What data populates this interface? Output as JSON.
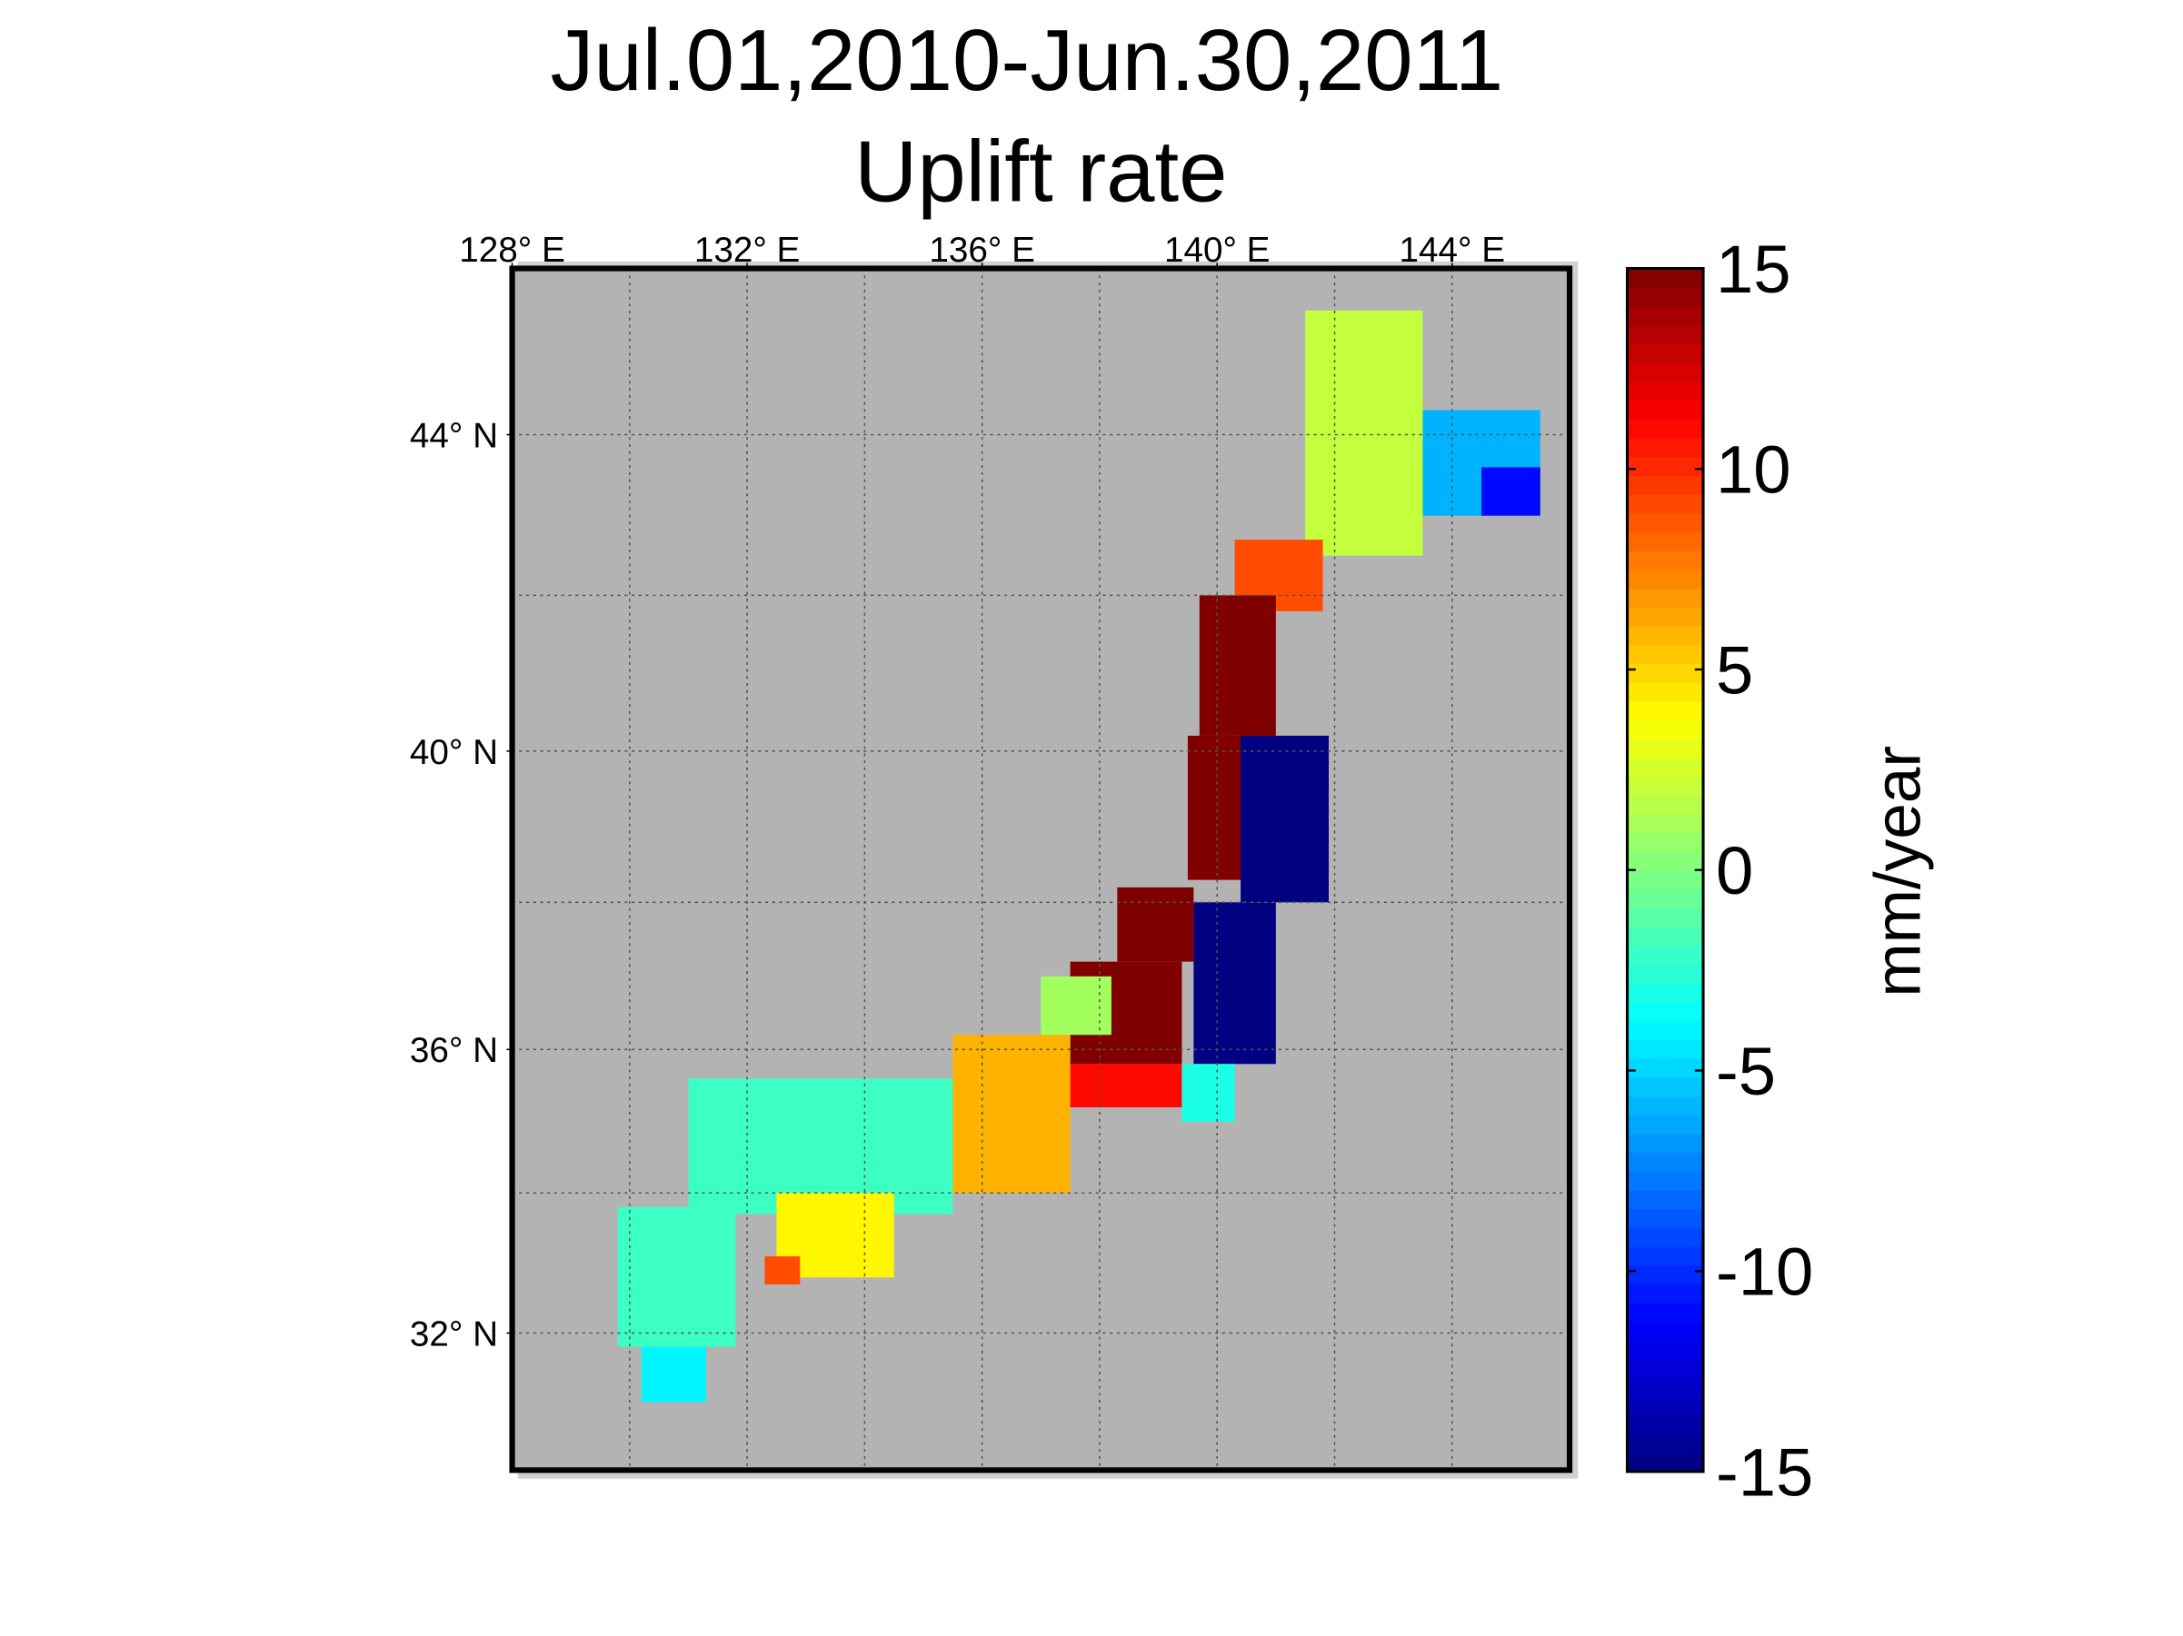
{
  "chart_data": {
    "type": "map",
    "title": "Jul.01,2010-Jun.30,2011",
    "subtitle": "Uplift rate",
    "xlim": [
      128,
      146
    ],
    "ylim": [
      30,
      46
    ],
    "xticks": [
      {
        "value": 128,
        "label": "128° E"
      },
      {
        "value": 132,
        "label": "132° E"
      },
      {
        "value": 136,
        "label": "136° E"
      },
      {
        "value": 140,
        "label": "140° E"
      },
      {
        "value": 144,
        "label": "144° E"
      }
    ],
    "yticks": [
      {
        "value": 44,
        "label": "44° N"
      },
      {
        "value": 40,
        "label": "40° N"
      },
      {
        "value": 36,
        "label": "36° N"
      },
      {
        "value": 32,
        "label": "32° N"
      }
    ],
    "xgrid": [
      130,
      132,
      134,
      136,
      138,
      140,
      142,
      144
    ],
    "ygrid": [
      32,
      34,
      36,
      38,
      40,
      42,
      44
    ],
    "grid": true,
    "cells": [
      {
        "lon": [
          141.5,
          143.5
        ],
        "lat": [
          42.5,
          45.5
        ],
        "value": 2
      },
      {
        "lon": [
          143.5,
          145.5
        ],
        "lat": [
          43.0,
          44.3
        ],
        "value": -6
      },
      {
        "lon": [
          144.5,
          145.5
        ],
        "lat": [
          43.0,
          43.6
        ],
        "value": -11
      },
      {
        "lon": [
          140.3,
          141.8
        ],
        "lat": [
          41.8,
          42.7
        ],
        "value": 9
      },
      {
        "lon": [
          139.7,
          141.0
        ],
        "lat": [
          40.2,
          42.0
        ],
        "value": 15
      },
      {
        "lon": [
          139.5,
          140.5
        ],
        "lat": [
          38.3,
          40.2
        ],
        "value": 15
      },
      {
        "lon": [
          140.4,
          141.9
        ],
        "lat": [
          38.0,
          40.2
        ],
        "value": -15
      },
      {
        "lon": [
          139.6,
          141.0
        ],
        "lat": [
          35.8,
          38.0
        ],
        "value": -15
      },
      {
        "lon": [
          138.3,
          139.6
        ],
        "lat": [
          37.2,
          38.2
        ],
        "value": 15
      },
      {
        "lon": [
          137.5,
          139.4
        ],
        "lat": [
          35.8,
          37.2
        ],
        "value": 15
      },
      {
        "lon": [
          137.5,
          139.4
        ],
        "lat": [
          35.2,
          35.8
        ],
        "value": 11
      },
      {
        "lon": [
          139.4,
          140.3
        ],
        "lat": [
          35.0,
          35.8
        ],
        "value": -3
      },
      {
        "lon": [
          135.5,
          137.5
        ],
        "lat": [
          34.0,
          36.2
        ],
        "value": 6
      },
      {
        "lon": [
          137.0,
          138.2
        ],
        "lat": [
          36.2,
          37.0
        ],
        "value": 1
      },
      {
        "lon": [
          131.0,
          135.5
        ],
        "lat": [
          33.7,
          35.6
        ],
        "value": -2
      },
      {
        "lon": [
          132.5,
          134.5
        ],
        "lat": [
          32.8,
          34.0
        ],
        "value": 4
      },
      {
        "lon": [
          132.3,
          132.9
        ],
        "lat": [
          32.7,
          33.1
        ],
        "value": 9
      },
      {
        "lon": [
          129.8,
          131.8
        ],
        "lat": [
          31.8,
          33.8
        ],
        "value": -2
      },
      {
        "lon": [
          130.2,
          131.3
        ],
        "lat": [
          31.0,
          31.8
        ],
        "value": -4
      }
    ],
    "colorbar": {
      "label": "mm/year",
      "lim": [
        -15,
        15
      ],
      "ticks": [
        15,
        10,
        5,
        0,
        -5,
        -10,
        -15
      ],
      "colormap": "jet"
    }
  }
}
